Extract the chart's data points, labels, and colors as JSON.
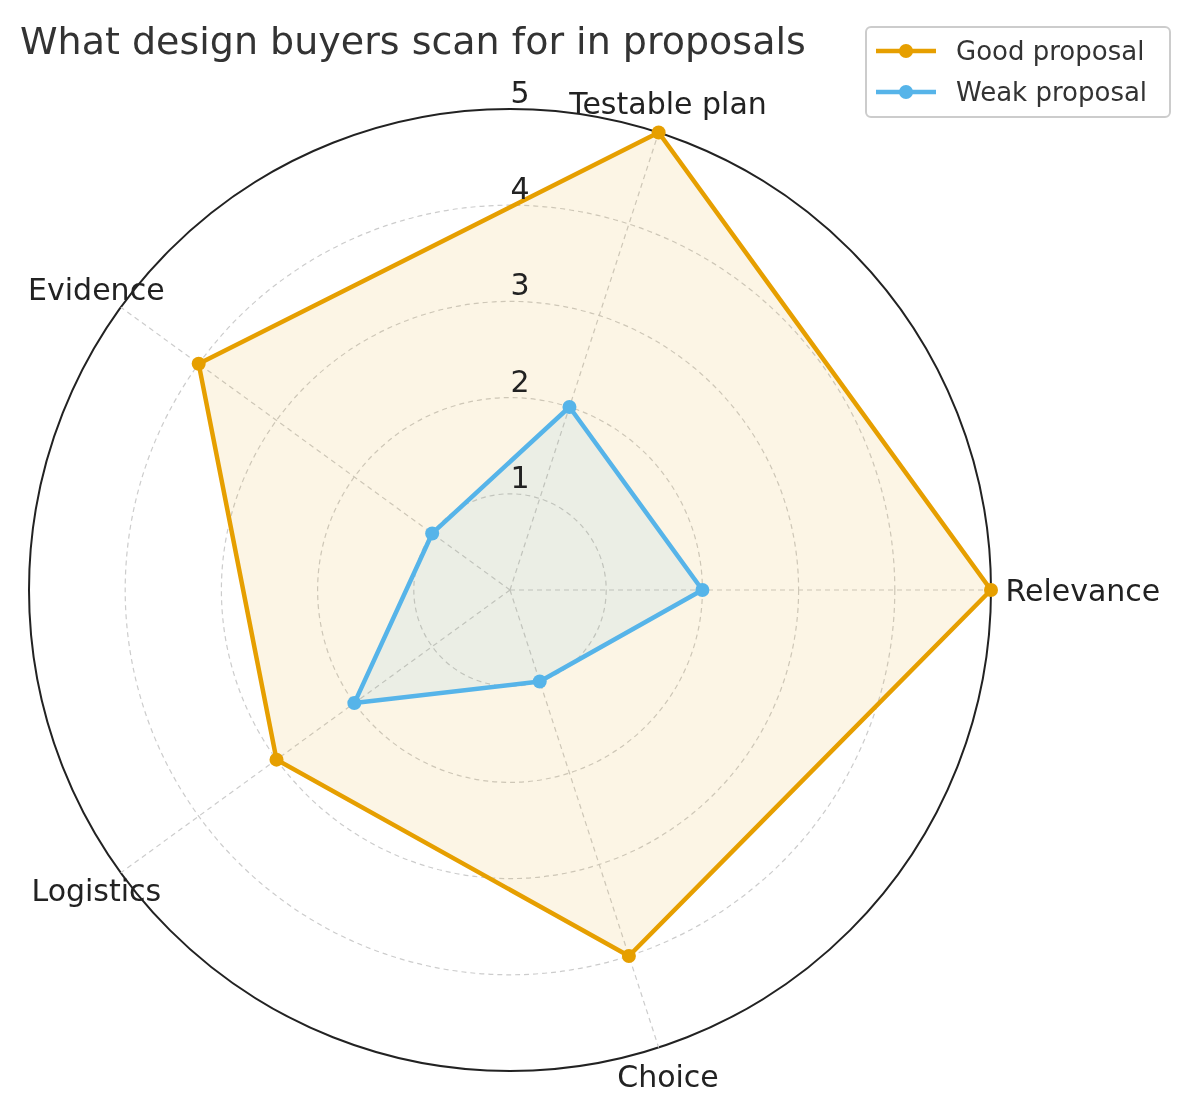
{
  "chart_data": {
    "type": "radar",
    "title": "What design buyers scan for in proposals",
    "categories": [
      "Testable plan",
      "Relevance",
      "Choice",
      "Logistics",
      "Evidence"
    ],
    "series": [
      {
        "name": "Good proposal",
        "color": "#e69f00",
        "values": [
          5,
          5,
          4,
          3,
          4
        ]
      },
      {
        "name": "Weak proposal",
        "color": "#56b4e9",
        "values": [
          2,
          2,
          1,
          2,
          1
        ]
      }
    ],
    "ylim": [
      0,
      5
    ],
    "yticks": [
      1,
      2,
      3,
      4,
      5
    ],
    "grid": true,
    "legend": "top right",
    "marker": "circle",
    "line_style": "solid"
  }
}
